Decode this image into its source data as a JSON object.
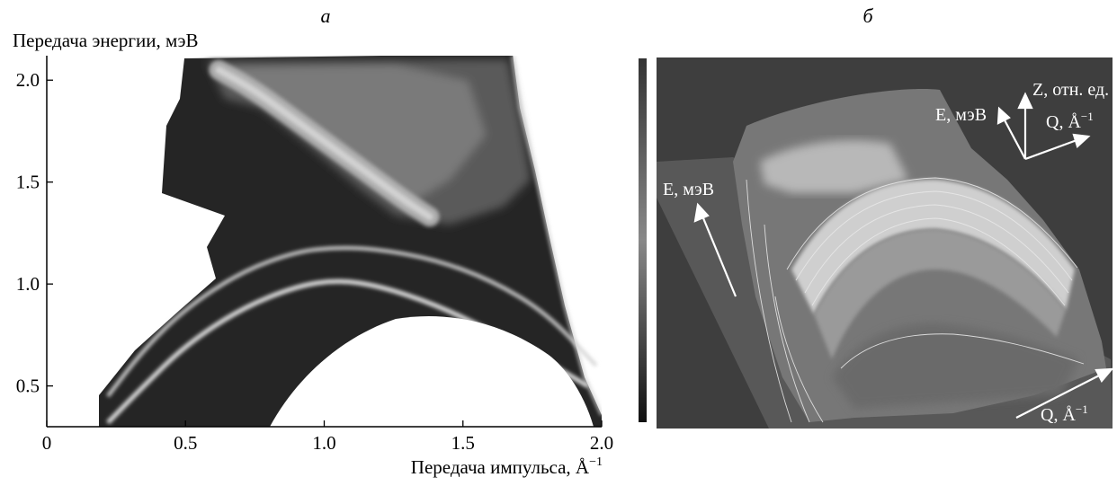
{
  "panel_a": {
    "letter": "а",
    "chart_data": {
      "type": "heatmap",
      "title": "",
      "xlabel": "Передача импульса, Å",
      "xlabel_sup": "−1",
      "ylabel": "Передача энергии, мэВ",
      "xlim": [
        0,
        2.0
      ],
      "ylim": [
        0.3,
        2.12
      ],
      "xticks": [
        0,
        0.5,
        1.0,
        1.5,
        2.0
      ],
      "xtick_labels": [
        "0",
        "0.5",
        "1.0",
        "1.5",
        "2.0"
      ],
      "yticks": [
        0.5,
        1.0,
        1.5,
        2.0
      ],
      "ytick_labels": [
        "0.5",
        "1.0",
        "1.5",
        "2.0"
      ],
      "grid": false,
      "colormap": "grayscale",
      "features": [
        {
          "name": "lower-branch",
          "x": [
            0.22,
            0.35,
            0.5,
            0.7,
            0.9,
            1.05,
            1.2,
            1.4,
            1.6,
            1.8,
            1.95
          ],
          "y": [
            0.32,
            0.5,
            0.7,
            0.88,
            0.99,
            1.02,
            0.99,
            0.9,
            0.77,
            0.62,
            0.5
          ]
        },
        {
          "name": "upper-branch",
          "x": [
            0.22,
            0.35,
            0.5,
            0.7,
            0.9,
            1.05,
            1.2,
            1.4,
            1.6,
            1.8,
            1.98
          ],
          "y": [
            0.45,
            0.68,
            0.88,
            1.06,
            1.16,
            1.18,
            1.17,
            1.12,
            1.02,
            0.86,
            0.6
          ]
        },
        {
          "name": "bright-ridge",
          "x": [
            0.62,
            0.75,
            0.9,
            1.05,
            1.2,
            1.3,
            1.38
          ],
          "y": [
            2.05,
            1.95,
            1.8,
            1.65,
            1.5,
            1.4,
            1.33
          ]
        }
      ]
    }
  },
  "panel_b": {
    "letter": "б",
    "type": "3d-surface",
    "axis_z": "Z, отн. ед.",
    "axis_e_top": "E, мэВ",
    "axis_q_top": "Q, Å",
    "axis_q_top_sup": "−1",
    "axis_e_side": "E, мэВ",
    "axis_q_bottom": "Q, Å",
    "axis_q_bottom_sup": "−1",
    "colorbar": "grayscale"
  }
}
